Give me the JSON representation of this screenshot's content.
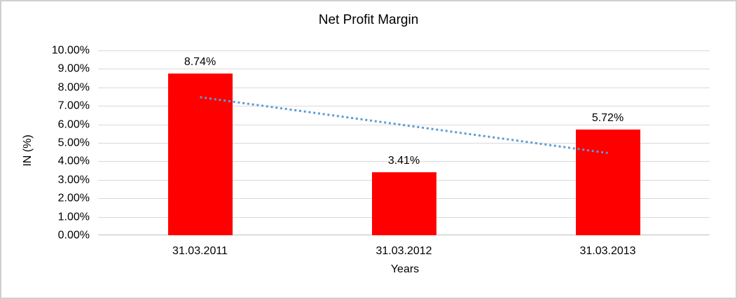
{
  "chart_data": {
    "type": "bar",
    "title": "Net Profit Margin",
    "xlabel": "Years",
    "ylabel": "IN (%)",
    "categories": [
      "31.03.2011",
      "31.03.2012",
      "31.03.2013"
    ],
    "series": [
      {
        "name": "Net Profit Margin",
        "values": [
          8.74,
          3.41,
          5.72
        ]
      }
    ],
    "data_labels": [
      "8.74%",
      "3.41%",
      "5.72%"
    ],
    "ylim": [
      0,
      10
    ],
    "ytick_step": 1,
    "ytick_labels": [
      "0.00%",
      "1.00%",
      "2.00%",
      "3.00%",
      "4.00%",
      "5.00%",
      "6.00%",
      "7.00%",
      "8.00%",
      "9.00%",
      "10.00%"
    ],
    "grid": true,
    "legend": "none",
    "colors": {
      "bar": "#FF0000",
      "trendline": "#5B9BD5",
      "gridline": "#D9D9D9",
      "axis_line": "#BFBFBF",
      "text": "#000000",
      "frame_border": "#CFCFCF",
      "background": "#FFFFFF"
    },
    "trendline": {
      "type": "linear",
      "style": "dotted",
      "color": "#5B9BD5",
      "start_value": 7.47,
      "end_value": 4.45
    }
  }
}
